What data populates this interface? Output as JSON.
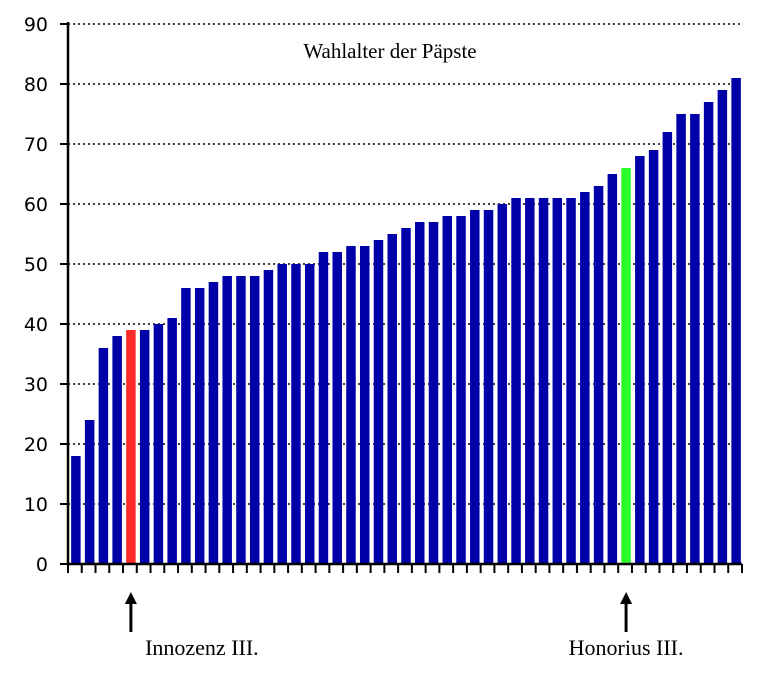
{
  "chart_data": {
    "type": "bar",
    "title": "Wahlalter der Päpste",
    "xlabel": "",
    "ylabel": "",
    "ylim": [
      0,
      90
    ],
    "yticks": [
      0,
      10,
      20,
      30,
      40,
      50,
      60,
      70,
      80,
      90
    ],
    "grid": true,
    "values": [
      18,
      24,
      36,
      38,
      39,
      39,
      40,
      41,
      46,
      46,
      47,
      48,
      48,
      48,
      49,
      50,
      50,
      50,
      52,
      52,
      53,
      53,
      54,
      55,
      56,
      57,
      57,
      58,
      58,
      59,
      59,
      60,
      61,
      61,
      61,
      61,
      61,
      62,
      63,
      65,
      66,
      68,
      69,
      72,
      75,
      75,
      77,
      79,
      81
    ],
    "highlights": [
      {
        "index": 4,
        "label": "Innozenz III.",
        "color": "#ff2a2a"
      },
      {
        "index": 40,
        "label": "Honorius III.",
        "color": "#2aff2a"
      }
    ],
    "colors": {
      "bar": "#0000a8",
      "grid": "#000000",
      "axis": "#000000"
    }
  }
}
